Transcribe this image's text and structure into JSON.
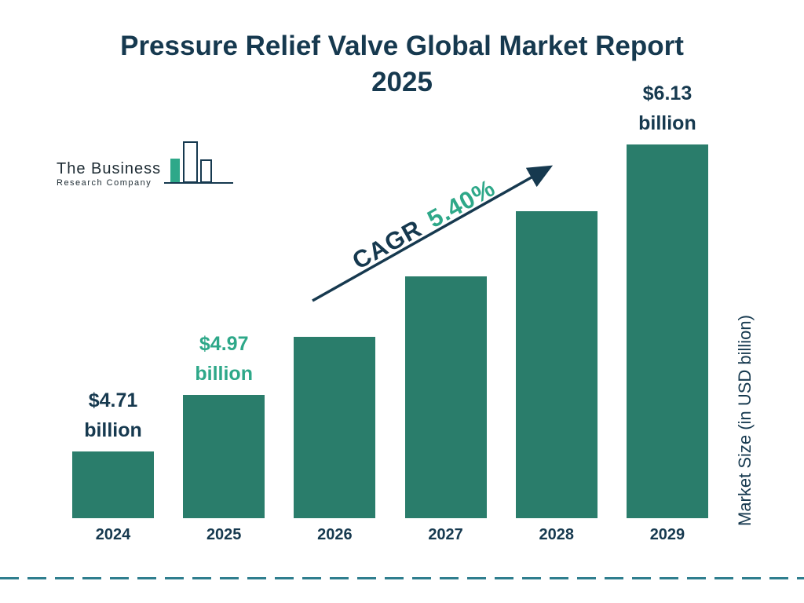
{
  "title": {
    "line1": "Pressure Relief Valve Global Market Report",
    "line2": "2025"
  },
  "logo": {
    "line1": "The Business",
    "line2": "Research Company"
  },
  "cagr": {
    "prefix": "CAGR",
    "value": "5.40%"
  },
  "ylabel": "Market Size (in USD billion)",
  "colors": {
    "bar": "#2a7d6b",
    "navy": "#16394f",
    "green": "#2ea889",
    "dashed": "#2f7e8e"
  },
  "chart_data": {
    "type": "bar",
    "title": "Pressure Relief Valve Global Market Report 2025",
    "categories": [
      "2024",
      "2025",
      "2026",
      "2027",
      "2028",
      "2029"
    ],
    "values": [
      4.71,
      4.97,
      5.24,
      5.52,
      5.82,
      6.13
    ],
    "value_labels": [
      {
        "line1": "$4.71",
        "line2": "billion",
        "color": "navy"
      },
      {
        "line1": "$4.97",
        "line2": "billion",
        "color": "green"
      },
      null,
      null,
      null,
      {
        "line1": "$6.13",
        "line2": "billion",
        "color": "navy"
      }
    ],
    "xlabel": "",
    "ylabel": "Market Size (in USD billion)",
    "cagr": "5.40%",
    "legend": "none",
    "grid": false
  }
}
